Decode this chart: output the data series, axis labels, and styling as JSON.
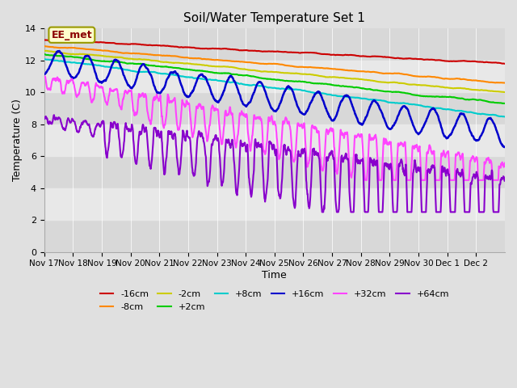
{
  "title": "Soil/Water Temperature Set 1",
  "xlabel": "Time",
  "ylabel": "Temperature (C)",
  "ylim": [
    0,
    14
  ],
  "yticks": [
    0,
    2,
    4,
    6,
    8,
    10,
    12,
    14
  ],
  "date_labels": [
    "Nov 17",
    "Nov 18",
    "Nov 19",
    "Nov 20",
    "Nov 21",
    "Nov 22",
    "Nov 23",
    "Nov 24",
    "Nov 25",
    "Nov 26",
    "Nov 27",
    "Nov 28",
    "Nov 29",
    "Nov 30",
    "Dec 1",
    "Dec 2"
  ],
  "annotation": "EE_met",
  "bg_color": "#e0e0e0",
  "plot_bg": "#e8e8e8",
  "series": [
    {
      "label": "-16cm",
      "color": "#cc0000",
      "lw": 1.5
    },
    {
      "label": "-8cm",
      "color": "#ff8800",
      "lw": 1.5
    },
    {
      "label": "-2cm",
      "color": "#cccc00",
      "lw": 1.5
    },
    {
      "label": "+2cm",
      "color": "#00cc00",
      "lw": 1.5
    },
    {
      "label": "+8cm",
      "color": "#00cccc",
      "lw": 1.5
    },
    {
      "label": "+16cm",
      "color": "#0000cc",
      "lw": 1.8
    },
    {
      "label": "+32cm",
      "color": "#ff44ff",
      "lw": 1.5
    },
    {
      "label": "+64cm",
      "color": "#8800cc",
      "lw": 1.5
    }
  ],
  "grid_color": "#ffffff",
  "stripe_light": "#d8d8d8",
  "stripe_dark": "#e8e8e8"
}
